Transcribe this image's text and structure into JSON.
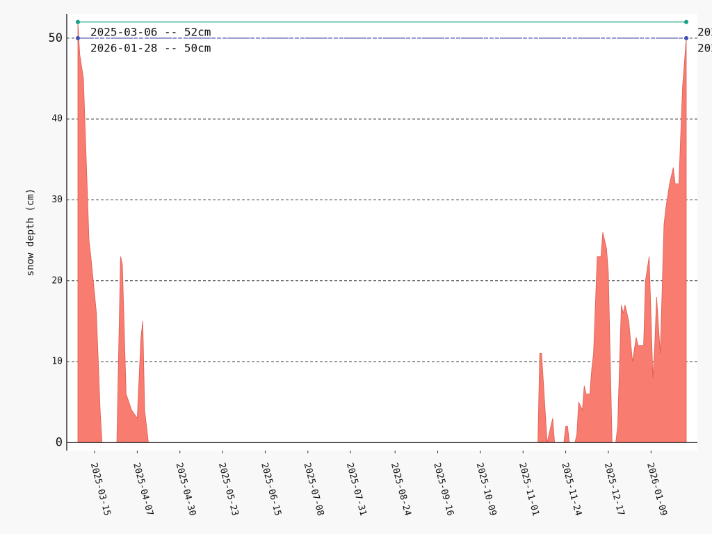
{
  "chart_data": {
    "type": "area",
    "ylabel": "snow depth (cm)",
    "x": [
      "2025-03-06",
      "2025-03-07",
      "2025-03-09",
      "2025-03-12",
      "2025-03-13",
      "2025-03-16",
      "2025-03-18",
      "2025-03-19",
      "2025-03-27",
      "2025-03-29",
      "2025-03-30",
      "2025-04-01",
      "2025-04-04",
      "2025-04-07",
      "2025-04-09",
      "2025-04-10",
      "2025-04-11",
      "2025-04-13",
      "2025-11-09",
      "2025-11-10",
      "2025-11-11",
      "2025-11-14",
      "2025-11-17",
      "2025-11-18",
      "2025-11-23",
      "2025-11-24",
      "2025-11-25",
      "2025-11-26",
      "2025-11-29",
      "2025-11-30",
      "2025-12-01",
      "2025-12-03",
      "2025-12-04",
      "2025-12-05",
      "2025-12-07",
      "2025-12-08",
      "2025-12-09",
      "2025-12-11",
      "2025-12-13",
      "2025-12-14",
      "2025-12-16",
      "2025-12-17",
      "2025-12-19",
      "2025-12-21",
      "2025-12-22",
      "2025-12-24",
      "2025-12-25",
      "2025-12-26",
      "2025-12-28",
      "2025-12-30",
      "2026-01-01",
      "2026-01-02",
      "2026-01-05",
      "2026-01-06",
      "2026-01-08",
      "2026-01-10",
      "2026-01-11",
      "2026-01-12",
      "2026-01-14",
      "2026-01-16",
      "2026-01-17",
      "2026-01-19",
      "2026-01-21",
      "2026-01-22",
      "2026-01-24",
      "2026-01-26",
      "2026-01-28"
    ],
    "series": [
      {
        "color": "#f87c70",
        "values": [
          52,
          48,
          45,
          25,
          23,
          16,
          4,
          0,
          0,
          23,
          22,
          6,
          4,
          3,
          13,
          15,
          4,
          0,
          0,
          11,
          11,
          0,
          3,
          0,
          0,
          2,
          2,
          0,
          0,
          1,
          5,
          4,
          7,
          6,
          6,
          9,
          11,
          23,
          23,
          26,
          24,
          21,
          0,
          0,
          2,
          17,
          16,
          17,
          15,
          10,
          13,
          12,
          12,
          20,
          23,
          8,
          12,
          18,
          11,
          27,
          29,
          32,
          34,
          32,
          32,
          44,
          50
        ]
      }
    ],
    "xlim": [
      "2025-02-28",
      "2026-02-03"
    ],
    "xticks": [
      "2025-03-15",
      "2025-04-07",
      "2025-04-30",
      "2025-05-23",
      "2025-06-15",
      "2025-07-08",
      "2025-07-31",
      "2025-08-24",
      "2025-09-16",
      "2025-10-09",
      "2025-11-01",
      "2025-11-24",
      "2025-12-17",
      "2026-01-09"
    ],
    "ylim": [
      -1,
      53
    ],
    "yticks": [
      0,
      10,
      20,
      30,
      40,
      50
    ],
    "grid": true,
    "annotations": [
      {
        "text": "2025-03-06 -- 52cm",
        "x": [
          "2025-03-06",
          "2026-01-28"
        ],
        "y": 52,
        "color": "#16a085"
      },
      {
        "text": "2026-01-28 -- 50cm",
        "x": [
          "2025-03-06",
          "2026-01-28"
        ],
        "y": 50,
        "color": "#3f51b5"
      }
    ]
  }
}
